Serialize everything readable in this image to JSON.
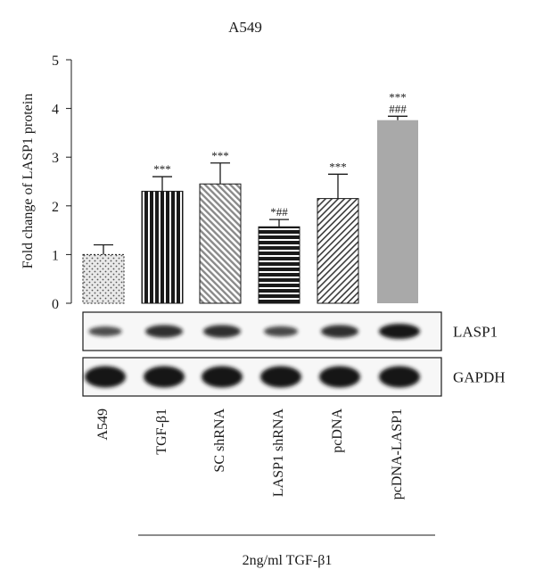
{
  "chart_data": {
    "type": "bar",
    "title": "A549",
    "ylabel": "Fold change of LASP1 protein",
    "ylim": [
      0,
      5
    ],
    "yticks": [
      "0",
      "1",
      "2",
      "3",
      "4",
      "5"
    ],
    "categories": [
      "A549",
      "TGF-β1",
      "SC shRNA",
      "LASP1 shRNA",
      "pcDNA",
      "pcDNA-LASP1"
    ],
    "values": [
      1.0,
      2.3,
      2.45,
      1.57,
      2.15,
      3.76
    ],
    "errors": [
      0.2,
      0.3,
      0.43,
      0.15,
      0.5,
      0.08
    ],
    "significance": [
      "",
      "***",
      "***",
      "*##",
      "***",
      "***\n###"
    ],
    "bar_fills": [
      "dots",
      "vertical-stripes",
      "diagonal-hatch",
      "horizontal-stripes",
      "back-diagonal-hatch",
      "solid-gray"
    ],
    "bar_colors": {
      "dark": "#1a1a1a",
      "light_fill": "#e9e9e9",
      "gray": "#a9a9a9",
      "hatch_gray": "#8a8a8a"
    },
    "treatment_label": "2ng/ml TGF-β1",
    "blots": [
      {
        "label": "LASP1",
        "band_intensity": [
          0.45,
          0.75,
          0.75,
          0.5,
          0.75,
          1.0
        ]
      },
      {
        "label": "GAPDH",
        "band_intensity": [
          1.0,
          1.0,
          1.0,
          1.0,
          1.0,
          1.0
        ]
      }
    ],
    "grid": false,
    "legend": "none"
  }
}
